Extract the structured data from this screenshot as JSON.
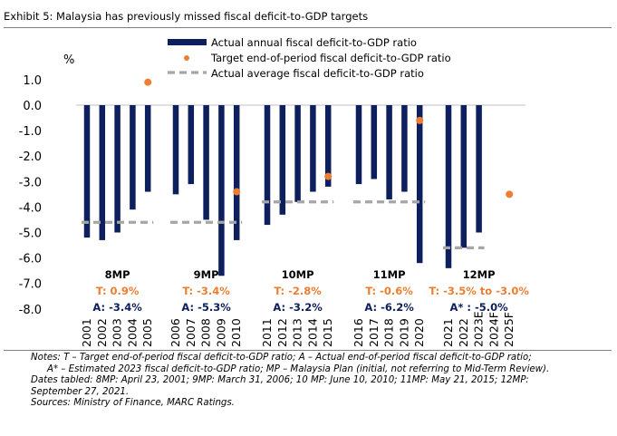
{
  "title": "Exhibit 5: Malaysia has previously missed fiscal deficit-to-GDP targets",
  "chart_data": {
    "type": "bar",
    "unit_label": "%",
    "ylim": [
      -8.0,
      1.0
    ],
    "yticks": [
      1.0,
      0.0,
      -1.0,
      -2.0,
      -3.0,
      -4.0,
      -5.0,
      -6.0,
      -7.0,
      -8.0
    ],
    "ytick_labels": [
      "1.0",
      "0.0",
      "-1.0",
      "-2.0",
      "-3.0",
      "-4.0",
      "-5.0",
      "-6.0",
      "-7.0",
      "-8.0"
    ],
    "categories": [
      "2001",
      "2002",
      "2003",
      "2004",
      "2005",
      "2006",
      "2007",
      "2008",
      "2009",
      "2010",
      "2011",
      "2012",
      "2013",
      "2014",
      "2015",
      "2016",
      "2017",
      "2018",
      "2019",
      "2020",
      "2021",
      "2022",
      "2023E",
      "2024F",
      "2025F"
    ],
    "series": [
      {
        "name": "Actual annual fiscal deficit-to-GDP ratio",
        "kind": "bar",
        "color": "#0d1f5c",
        "values": [
          -5.2,
          -5.3,
          -5.0,
          -4.1,
          -3.4,
          -3.5,
          -3.1,
          -4.5,
          -6.7,
          -5.3,
          -4.7,
          -4.3,
          -3.8,
          -3.4,
          -3.2,
          -3.1,
          -2.9,
          -3.7,
          -3.4,
          -6.2,
          -6.4,
          -5.6,
          -5.0,
          null,
          null
        ]
      },
      {
        "name": "Target end-of-period fiscal deficit-to-GDP ratio",
        "kind": "point",
        "color": "#ed7d31",
        "points": [
          {
            "x": "2005",
            "y": 0.9
          },
          {
            "x": "2010",
            "y": -3.4
          },
          {
            "x": "2015",
            "y": -2.8
          },
          {
            "x": "2020",
            "y": -0.6
          },
          {
            "x": "2025F",
            "y": -3.5
          }
        ]
      },
      {
        "name": "Actual average fiscal deficit-to-GDP ratio",
        "kind": "segment",
        "color": "#a6a6a6",
        "segments": [
          {
            "from": "2001",
            "to": "2005",
            "y": -4.6
          },
          {
            "from": "2006",
            "to": "2010",
            "y": -4.6
          },
          {
            "from": "2011",
            "to": "2015",
            "y": -3.8
          },
          {
            "from": "2016",
            "to": "2020",
            "y": -3.8
          },
          {
            "from": "2021",
            "to": "2023E",
            "y": -5.6
          }
        ]
      }
    ],
    "plans": [
      {
        "name": "8MP",
        "target": "T: 0.9%",
        "actual": "A: -3.4%",
        "from": "2001",
        "to": "2005"
      },
      {
        "name": "9MP",
        "target": "T: -3.4%",
        "actual": "A: -5.3%",
        "from": "2006",
        "to": "2010"
      },
      {
        "name": "10MP",
        "target": "T: -2.8%",
        "actual": "A: -3.2%",
        "from": "2011",
        "to": "2015"
      },
      {
        "name": "11MP",
        "target": "T: -0.6%",
        "actual": "A: -6.2%",
        "from": "2016",
        "to": "2020"
      },
      {
        "name": "12MP",
        "target": "T: -3.5% to -3.0%",
        "actual": "A* : -5.0%",
        "from": "2021",
        "to": "2025F"
      }
    ],
    "legend_position": "top"
  },
  "notes": [
    "Notes: T – Target end-of-period fiscal deficit-to-GDP ratio; A – Actual end-of-period fiscal deficit-to-GDP ratio;",
    "A* – Estimated 2023 fiscal deficit-to-GDP ratio; MP – Malaysia Plan (initial, not referring to Mid-Term Review).",
    "Dates tabled: 8MP: April 23, 2001; 9MP: March 31, 2006; 10 MP: June 10, 2010; 11MP: May 21, 2015; 12MP:",
    "September 27, 2021.",
    "Sources: Ministry of Finance, MARC Ratings."
  ]
}
